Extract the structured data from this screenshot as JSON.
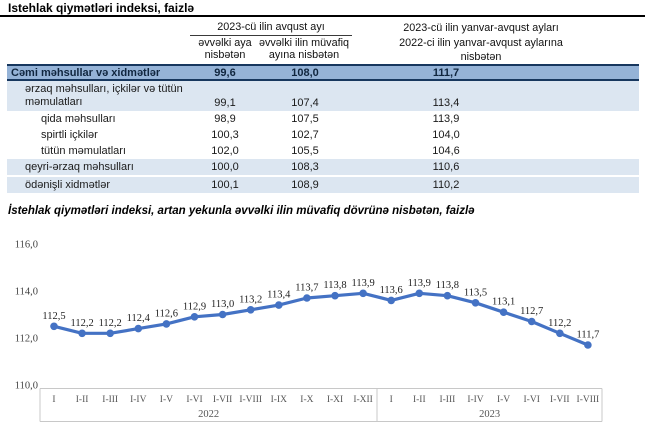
{
  "page": {
    "title": "Istehlak qiymətləri indeksi, faizlə"
  },
  "table": {
    "group_header": "2023-cü ilin avqust ayı",
    "col_prev_month": "əvvəlki aya nisbətən",
    "col_prev_year_month": "əvvəlki ilin müvafiq ayına nisbətən",
    "col_cumulative_line1": "2023-cü ilin yanvar-avqust ayları",
    "col_cumulative_line2": "2022-ci ilin yanvar-avqust aylarına",
    "col_cumulative_line3": "nisbətən",
    "rows": [
      {
        "label": "Cəmi məhsullar və xidmətlər",
        "values": [
          "99,6",
          "108,0",
          "111,7"
        ]
      },
      {
        "label": "ərzaq məhsulları, içkilər və tütün məmulatları",
        "values": [
          "99,1",
          "107,4",
          "113,4"
        ]
      },
      {
        "label": "qida məhsulları",
        "values": [
          "98,9",
          "107,5",
          "113,9"
        ]
      },
      {
        "label": "spirtli içkilər",
        "values": [
          "100,3",
          "102,7",
          "104,0"
        ]
      },
      {
        "label": "tütün məmulatları",
        "values": [
          "102,0",
          "105,5",
          "104,6"
        ]
      },
      {
        "label": "qeyri-ərzaq məhsulları",
        "values": [
          "100,0",
          "108,3",
          "110,6"
        ]
      },
      {
        "label": "ödənişli xidmətlər",
        "values": [
          "100,1",
          "108,9",
          "110,2"
        ]
      }
    ]
  },
  "chart_data": {
    "type": "line",
    "title": "İstehlak qiymətləri indeksi, artan yekunla əvvəlki ilin müvafiq dövrünə nisbətən, faizlə",
    "categories": [
      "I",
      "I-II",
      "I-III",
      "I-IV",
      "I-V",
      "I-VI",
      "I-VII",
      "I-VIII",
      "I-IX",
      "I-X",
      "I-XI",
      "I-XII",
      "I",
      "I-II",
      "I-III",
      "I-IV",
      "I-V",
      "I-VI",
      "I-VII",
      "I-VIII"
    ],
    "groups": [
      {
        "label": "2022",
        "count": 12
      },
      {
        "label": "2023",
        "count": 8
      }
    ],
    "values": [
      112.5,
      112.2,
      112.2,
      112.4,
      112.6,
      112.9,
      113.0,
      113.2,
      113.4,
      113.7,
      113.8,
      113.9,
      113.6,
      113.9,
      113.8,
      113.5,
      113.1,
      112.7,
      112.2,
      111.7
    ],
    "y_ticks": [
      116,
      114,
      112,
      110
    ],
    "ylim": [
      110,
      116
    ],
    "xlabel": "",
    "ylabel": "",
    "grid": false,
    "legend": "none",
    "marker": "circle",
    "line_color": "#4472C4",
    "decimal_separator": ","
  },
  "colors": {
    "accent_line": "#4472C4",
    "table_total_row_bg": "#95B3D7",
    "table_group_row_bg": "#DCE6F1",
    "table_border_navy": "#17375E"
  }
}
